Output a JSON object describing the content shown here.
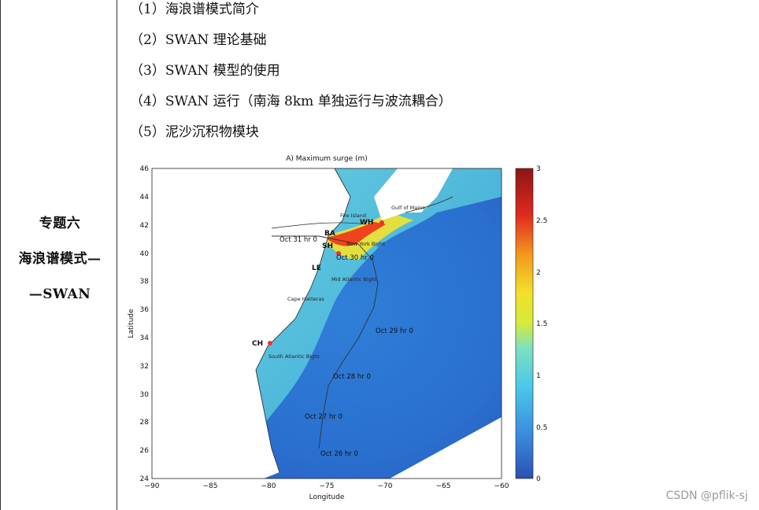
{
  "left_panel": {
    "lines": [
      "专题六",
      "海浪谱模式—",
      "—SWAN"
    ]
  },
  "items": [
    "（1）海浪谱模式简介",
    "（2）SWAN 理论基础",
    "（3）SWAN 模型的使用",
    "（4）SWAN 运行（南海 8km 单独运行与波流耦合）",
    "（5）泥沙沉积物模块"
  ],
  "figure": {
    "title": "A) Maximum surge (m)",
    "xlabel": "Longitude",
    "ylabel": "Latitude",
    "x_ticks": [
      "−90",
      "−85",
      "−80",
      "−75",
      "−70",
      "−65",
      "−60"
    ],
    "y_ticks": [
      "46",
      "44",
      "42",
      "40",
      "38",
      "36",
      "34",
      "32",
      "30",
      "28",
      "26",
      "24"
    ],
    "colorbar_ticks": [
      "3",
      "2.5",
      "2",
      "1.5",
      "1",
      "0.5",
      "0"
    ],
    "track_labels": [
      "Oct 31 hr 0",
      "Oct 30 hr 0",
      "Oct 29 hr 0",
      "Oct 28 hr 0",
      "Oct 27 hr 0",
      "Oct 26 hr 0"
    ],
    "region_labels": [
      "Fire Island",
      "Gulf of Maine",
      "New York Bight",
      "Mid Atlantic Bight",
      "Cape Hatteras",
      "South Atlantic Bight"
    ],
    "station_labels": [
      "BA",
      "WH",
      "SH",
      "LE",
      "CH"
    ]
  },
  "watermark": "CSDN @pflik-sj"
}
